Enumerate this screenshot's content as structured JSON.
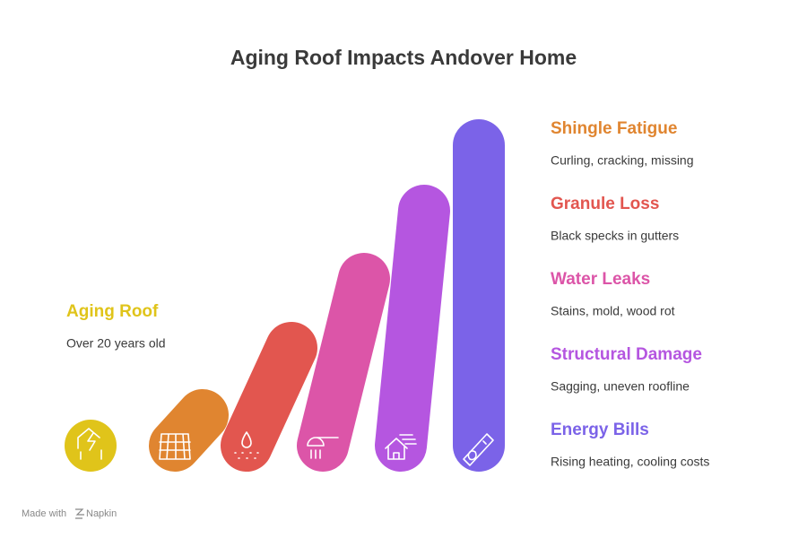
{
  "title": "Aging Roof Impacts Andover Home",
  "start": {
    "label": "Aging Roof",
    "description": "Over 20 years old"
  },
  "items": [
    {
      "label": "Shingle Fatigue",
      "description": "Curling, cracking, missing"
    },
    {
      "label": "Granule Loss",
      "description": "Black specks in gutters"
    },
    {
      "label": "Water Leaks",
      "description": "Stains, mold, wood rot"
    },
    {
      "label": "Structural Damage",
      "description": "Sagging, uneven roofline"
    },
    {
      "label": "Energy Bills",
      "description": "Rising heating, cooling costs"
    }
  ],
  "footer": {
    "text": "Made with",
    "brand": "Napkin"
  }
}
